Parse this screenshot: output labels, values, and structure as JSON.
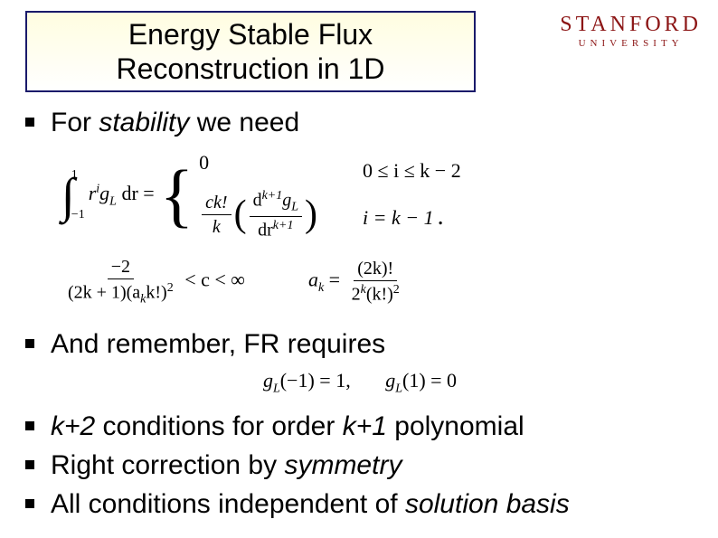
{
  "logo": {
    "main": "STANFORD",
    "sub": "UNIVERSITY",
    "color": "#8c1515"
  },
  "title": "Energy Stable Flux Reconstruction in 1D",
  "bullets": {
    "b1_pre": "For ",
    "b1_em": "stability",
    "b1_post": " we need",
    "b2": "And remember, FR requires",
    "b3_pre": "k+2",
    "b3_mid": " conditions for order ",
    "b3_em2": "k+1",
    "b3_post": " polynomial",
    "b4_pre": "Right correction by ",
    "b4_em": "symmetry",
    "b5_pre": "All conditions independent of ",
    "b5_em": "solution basis"
  },
  "math": {
    "int_upper": "1",
    "int_lower": "−1",
    "integrand_r": "r",
    "integrand_exp": "i",
    "integrand_g": "g",
    "integrand_gsub": "L",
    "dr": " dr =",
    "case0": "0",
    "case1_cknum": "ck!",
    "case1_ckden": "k",
    "case1_dnum_d": "d",
    "case1_dnum_exp": "k+1",
    "case1_dnum_g": "g",
    "case1_dnum_gsub": "L",
    "case1_dden_d": "dr",
    "case1_dden_exp": "k+1",
    "cond0": "0 ≤ i ≤ k − 2",
    "cond1": "i = k − 1",
    "trail": ".",
    "crange_num": "−2",
    "crange_den_pre": "(2k + 1)(a",
    "crange_den_sub": "k",
    "crange_den_post": "k!)",
    "crange_den_exp": "2",
    "crange_post": " < c < ∞",
    "ak_lhs_a": "a",
    "ak_lhs_sub": "k",
    "ak_eq": " = ",
    "ak_num": "(2k)!",
    "ak_den_pre": "2",
    "ak_den_exp": "k",
    "ak_den_post": "(k!)",
    "ak_den_exp2": "2",
    "fr_gl": "g",
    "fr_gl_sub": "L",
    "fr_gl_arg1": "(−1) = 1,",
    "fr_gl_arg2": "(1) = 0"
  }
}
